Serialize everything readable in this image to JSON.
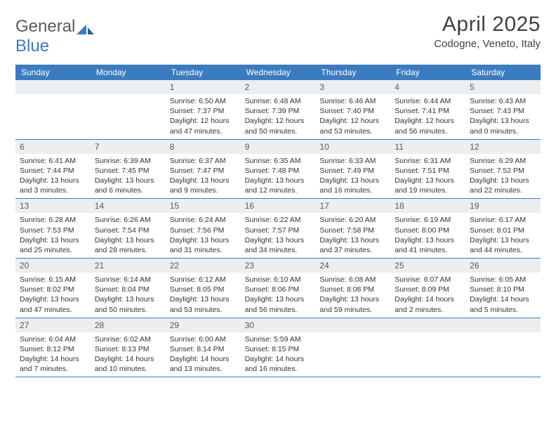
{
  "logo": {
    "word1": "General",
    "word2": "Blue"
  },
  "title": "April 2025",
  "location": "Codogne, Veneto, Italy",
  "colors": {
    "header_bg": "#3b7bbf",
    "header_text": "#ffffff",
    "daynum_bg": "#eceeef",
    "daynum_text": "#56595c",
    "border": "#3b7bbf",
    "body_text": "#333333",
    "logo_gray": "#5a5a5a",
    "logo_blue": "#3b7bbf"
  },
  "day_headers": [
    "Sunday",
    "Monday",
    "Tuesday",
    "Wednesday",
    "Thursday",
    "Friday",
    "Saturday"
  ],
  "rows": [
    [
      null,
      null,
      {
        "n": "1",
        "sr": "6:50 AM",
        "ss": "7:37 PM",
        "dl": "12 hours and 47 minutes."
      },
      {
        "n": "2",
        "sr": "6:48 AM",
        "ss": "7:39 PM",
        "dl": "12 hours and 50 minutes."
      },
      {
        "n": "3",
        "sr": "6:46 AM",
        "ss": "7:40 PM",
        "dl": "12 hours and 53 minutes."
      },
      {
        "n": "4",
        "sr": "6:44 AM",
        "ss": "7:41 PM",
        "dl": "12 hours and 56 minutes."
      },
      {
        "n": "5",
        "sr": "6:43 AM",
        "ss": "7:43 PM",
        "dl": "13 hours and 0 minutes."
      }
    ],
    [
      {
        "n": "6",
        "sr": "6:41 AM",
        "ss": "7:44 PM",
        "dl": "13 hours and 3 minutes."
      },
      {
        "n": "7",
        "sr": "6:39 AM",
        "ss": "7:45 PM",
        "dl": "13 hours and 6 minutes."
      },
      {
        "n": "8",
        "sr": "6:37 AM",
        "ss": "7:47 PM",
        "dl": "13 hours and 9 minutes."
      },
      {
        "n": "9",
        "sr": "6:35 AM",
        "ss": "7:48 PM",
        "dl": "13 hours and 12 minutes."
      },
      {
        "n": "10",
        "sr": "6:33 AM",
        "ss": "7:49 PM",
        "dl": "13 hours and 16 minutes."
      },
      {
        "n": "11",
        "sr": "6:31 AM",
        "ss": "7:51 PM",
        "dl": "13 hours and 19 minutes."
      },
      {
        "n": "12",
        "sr": "6:29 AM",
        "ss": "7:52 PM",
        "dl": "13 hours and 22 minutes."
      }
    ],
    [
      {
        "n": "13",
        "sr": "6:28 AM",
        "ss": "7:53 PM",
        "dl": "13 hours and 25 minutes."
      },
      {
        "n": "14",
        "sr": "6:26 AM",
        "ss": "7:54 PM",
        "dl": "13 hours and 28 minutes."
      },
      {
        "n": "15",
        "sr": "6:24 AM",
        "ss": "7:56 PM",
        "dl": "13 hours and 31 minutes."
      },
      {
        "n": "16",
        "sr": "6:22 AM",
        "ss": "7:57 PM",
        "dl": "13 hours and 34 minutes."
      },
      {
        "n": "17",
        "sr": "6:20 AM",
        "ss": "7:58 PM",
        "dl": "13 hours and 37 minutes."
      },
      {
        "n": "18",
        "sr": "6:19 AM",
        "ss": "8:00 PM",
        "dl": "13 hours and 41 minutes."
      },
      {
        "n": "19",
        "sr": "6:17 AM",
        "ss": "8:01 PM",
        "dl": "13 hours and 44 minutes."
      }
    ],
    [
      {
        "n": "20",
        "sr": "6:15 AM",
        "ss": "8:02 PM",
        "dl": "13 hours and 47 minutes."
      },
      {
        "n": "21",
        "sr": "6:14 AM",
        "ss": "8:04 PM",
        "dl": "13 hours and 50 minutes."
      },
      {
        "n": "22",
        "sr": "6:12 AM",
        "ss": "8:05 PM",
        "dl": "13 hours and 53 minutes."
      },
      {
        "n": "23",
        "sr": "6:10 AM",
        "ss": "8:06 PM",
        "dl": "13 hours and 56 minutes."
      },
      {
        "n": "24",
        "sr": "6:08 AM",
        "ss": "8:08 PM",
        "dl": "13 hours and 59 minutes."
      },
      {
        "n": "25",
        "sr": "6:07 AM",
        "ss": "8:09 PM",
        "dl": "14 hours and 2 minutes."
      },
      {
        "n": "26",
        "sr": "6:05 AM",
        "ss": "8:10 PM",
        "dl": "14 hours and 5 minutes."
      }
    ],
    [
      {
        "n": "27",
        "sr": "6:04 AM",
        "ss": "8:12 PM",
        "dl": "14 hours and 7 minutes."
      },
      {
        "n": "28",
        "sr": "6:02 AM",
        "ss": "8:13 PM",
        "dl": "14 hours and 10 minutes."
      },
      {
        "n": "29",
        "sr": "6:00 AM",
        "ss": "8:14 PM",
        "dl": "14 hours and 13 minutes."
      },
      {
        "n": "30",
        "sr": "5:59 AM",
        "ss": "8:15 PM",
        "dl": "14 hours and 16 minutes."
      },
      null,
      null,
      null
    ]
  ],
  "labels": {
    "sunrise": "Sunrise:",
    "sunset": "Sunset:",
    "daylight": "Daylight:"
  }
}
